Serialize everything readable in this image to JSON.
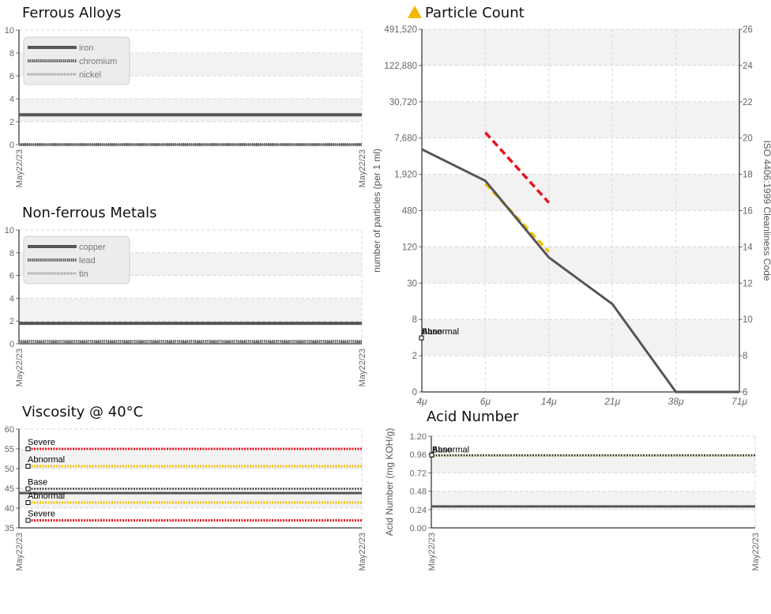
{
  "colors": {
    "line": "#555555",
    "severe": "#e8141c",
    "abnormal": "#f2c200",
    "base": "#444444",
    "grid": "#d9d9d9",
    "band": "#f2f2f2",
    "axis": "#000000",
    "tick": "#777777"
  },
  "titles": {
    "ferrous": "Ferrous Alloys",
    "nonferrous": "Non-ferrous Metals",
    "viscosity": "Viscosity @ 40°C",
    "particle": "Particle Count",
    "acid": "Acid Number"
  },
  "chart_data": [
    {
      "id": "ferrous",
      "type": "line",
      "title": "Ferrous Alloys",
      "x": [
        "May22/23",
        "May22/23"
      ],
      "ylim": [
        0,
        10
      ],
      "yticks": [
        "0",
        "2",
        "4",
        "6",
        "8",
        "10"
      ],
      "legend": [
        "iron",
        "chromium",
        "nickel"
      ],
      "legend_position": "top-left",
      "series": [
        {
          "name": "iron",
          "values": [
            2.6,
            2.6
          ]
        },
        {
          "name": "chromium",
          "values": [
            0,
            0
          ]
        },
        {
          "name": "nickel",
          "values": [
            0,
            0
          ]
        }
      ]
    },
    {
      "id": "nonferrous",
      "type": "line",
      "title": "Non-ferrous Metals",
      "x": [
        "May22/23",
        "May22/23"
      ],
      "ylim": [
        0,
        10
      ],
      "yticks": [
        "0",
        "2",
        "4",
        "6",
        "8",
        "10"
      ],
      "legend": [
        "copper",
        "lead",
        "tin"
      ],
      "legend_position": "top-left",
      "series": [
        {
          "name": "copper",
          "values": [
            1.8,
            1.8
          ]
        },
        {
          "name": "lead",
          "values": [
            0.2,
            0.2
          ]
        },
        {
          "name": "tin",
          "values": [
            0.1,
            0.1
          ]
        }
      ]
    },
    {
      "id": "viscosity",
      "type": "line",
      "title": "Viscosity @ 40°C",
      "x": [
        "May22/23",
        "May22/23"
      ],
      "ylim": [
        35,
        60
      ],
      "yticks": [
        "35",
        "40",
        "45",
        "50",
        "55",
        "60"
      ],
      "series": [
        {
          "values": [
            43.8,
            43.8
          ]
        }
      ],
      "limits": [
        {
          "label": "Severe",
          "value": 55.0,
          "kind": "severe"
        },
        {
          "label": "Abnormal",
          "value": 50.6,
          "kind": "abnormal"
        },
        {
          "label": "Base",
          "value": 44.9,
          "kind": "base"
        },
        {
          "label": "Abnormal",
          "value": 41.4,
          "kind": "abnormal"
        },
        {
          "label": "Severe",
          "value": 36.9,
          "kind": "severe"
        }
      ]
    },
    {
      "id": "particle",
      "type": "line",
      "title": "Particle Count",
      "x": [
        "4μ",
        "6μ",
        "14μ",
        "21μ",
        "38μ",
        "71μ"
      ],
      "yticks": [
        "0",
        "2",
        "8",
        "30",
        "120",
        "480",
        "1,920",
        "7,680",
        "30,720",
        "122,880",
        "491,520"
      ],
      "y2ticks": [
        "6",
        "8",
        "10",
        "12",
        "14",
        "16",
        "18",
        "20",
        "22",
        "24",
        "26"
      ],
      "ylabel": "number of particles (per 1 ml)",
      "y2label": "ISO 4406:1999 Cleanliness Code",
      "series": [
        {
          "values": [
            5000,
            1500,
            80,
            14,
            0,
            0
          ]
        }
      ],
      "limits": [
        {
          "kind": "severe",
          "x": [
            "6μ",
            "14μ"
          ],
          "y": [
            9500,
            650
          ]
        },
        {
          "kind": "abnormal",
          "x": [
            "6μ",
            "14μ"
          ],
          "y": [
            1350,
            100
          ]
        }
      ],
      "annotations": [
        "Base",
        "Abnormal"
      ]
    },
    {
      "id": "acid",
      "type": "line",
      "title": "Acid Number",
      "x": [
        "May22/23",
        "May22/23"
      ],
      "ylim": [
        0,
        1.2
      ],
      "yticks": [
        "0.00",
        "0.24",
        "0.48",
        "0.72",
        "0.96",
        "1.20"
      ],
      "ylabel": "Acid Number (mg KOH/g)",
      "series": [
        {
          "values": [
            0.28,
            0.28
          ]
        }
      ],
      "limits": [
        {
          "label": "Abnormal",
          "value": 0.98,
          "kind": "abnormal"
        },
        {
          "label": "Base",
          "value": 0.98,
          "kind": "base"
        }
      ]
    }
  ]
}
